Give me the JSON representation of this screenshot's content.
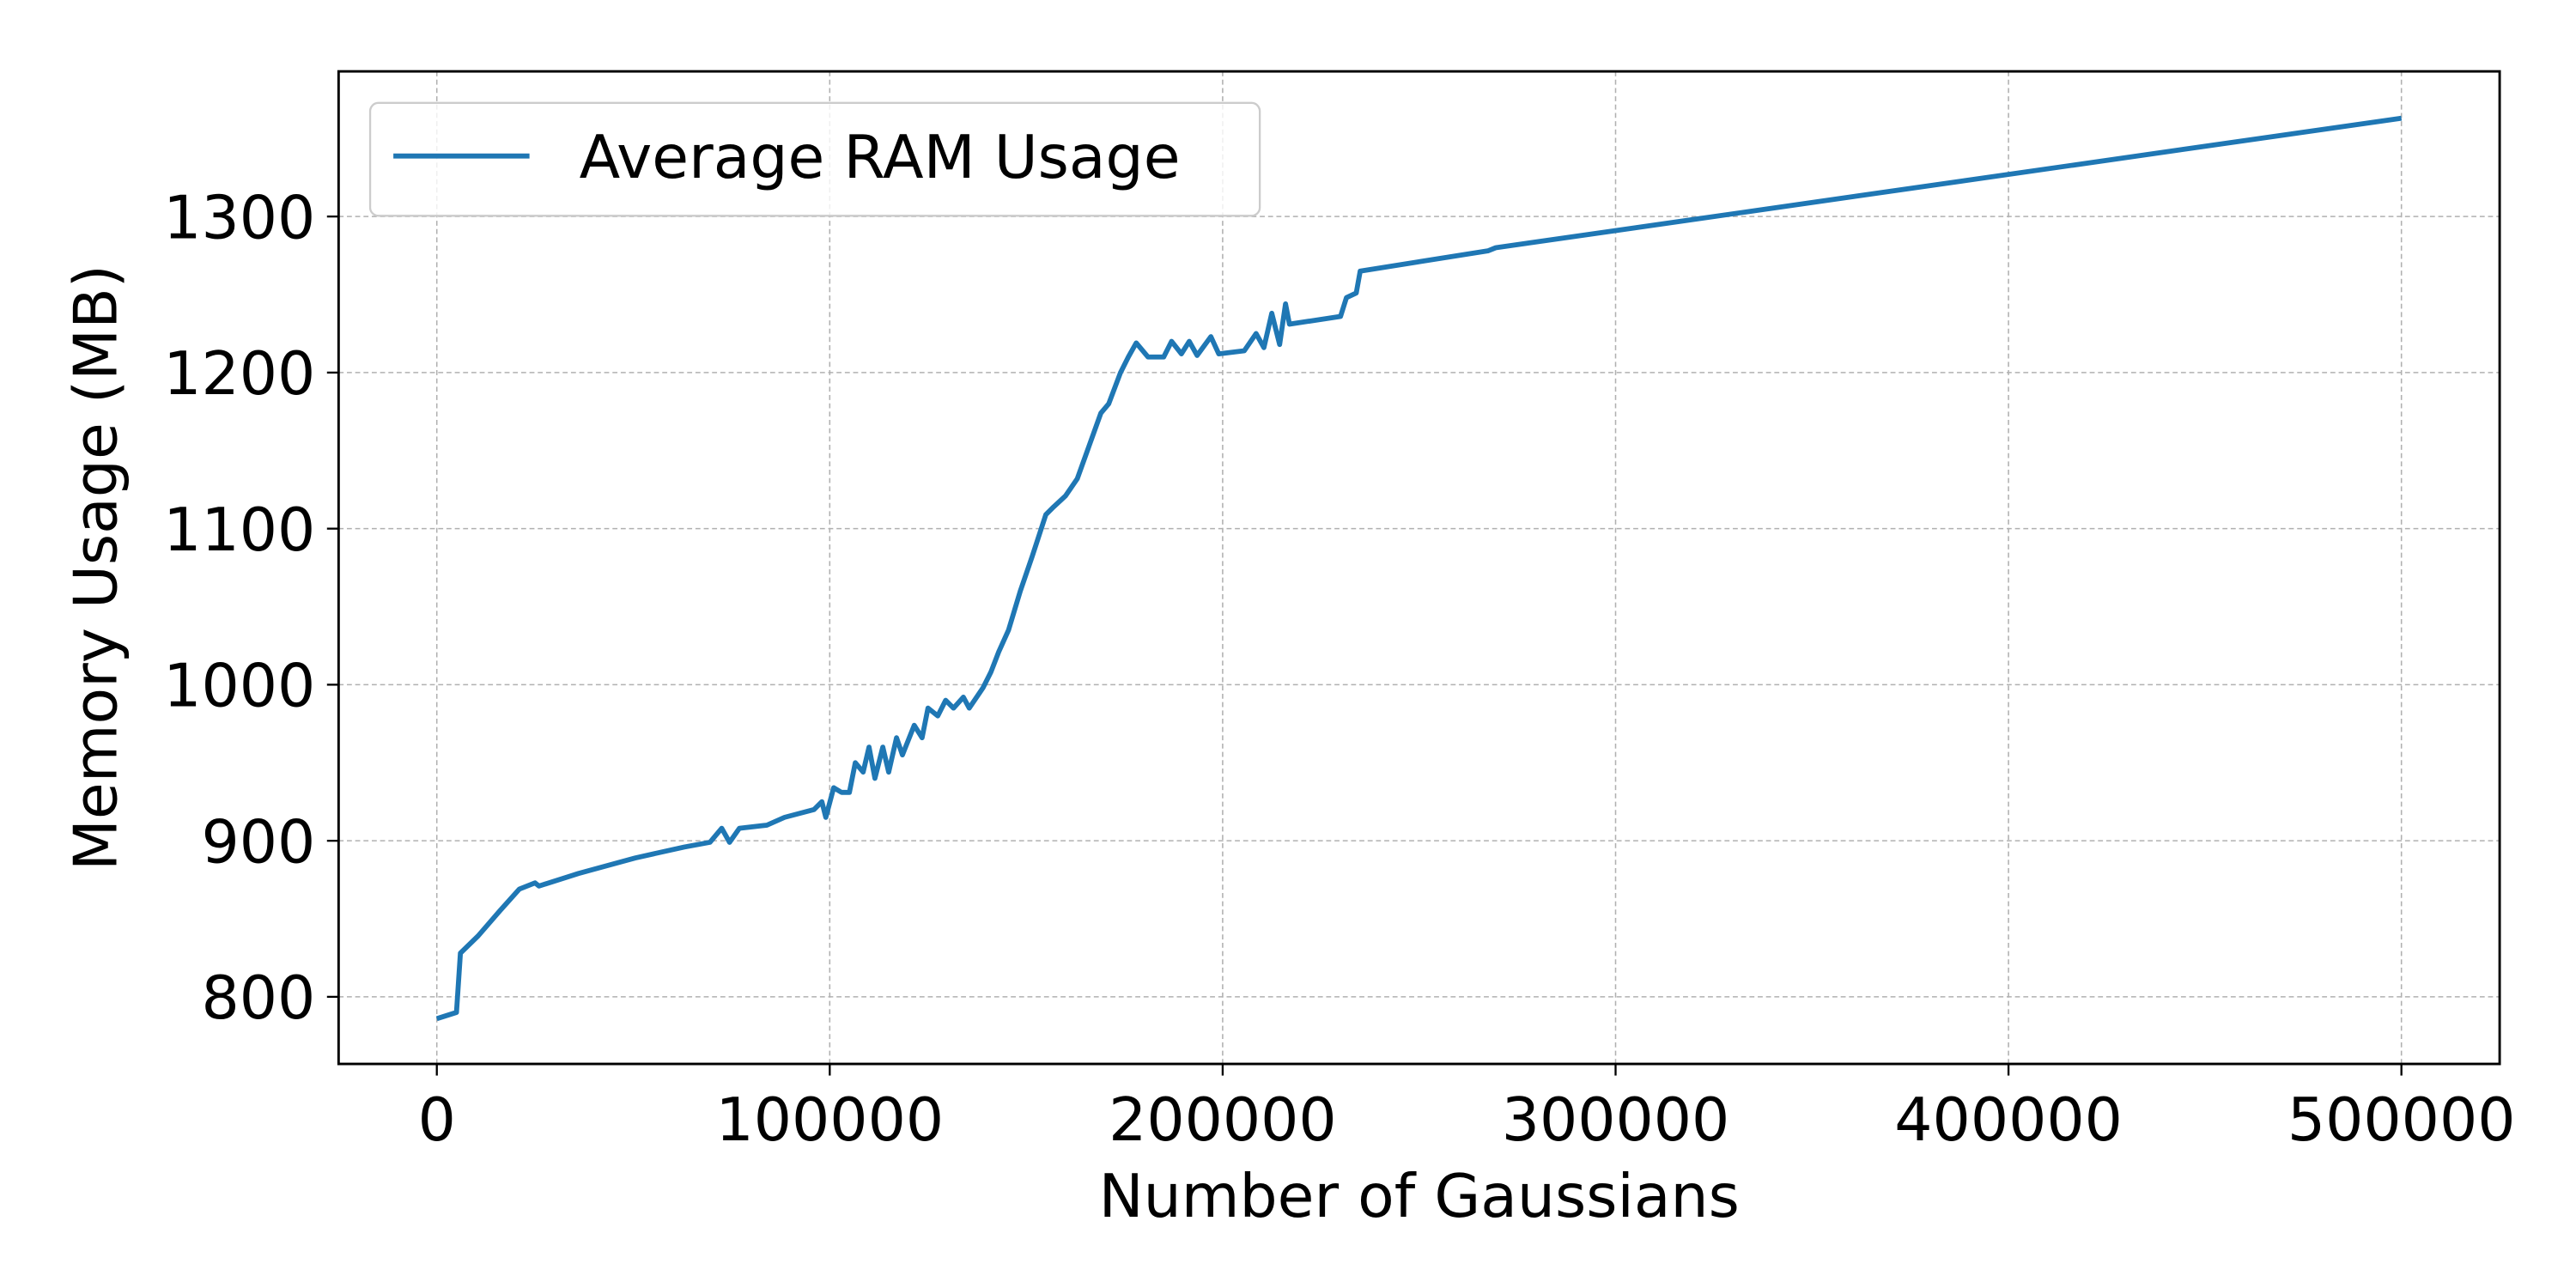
{
  "chart_data": {
    "type": "line",
    "x_label": "Number of Gaussians",
    "y_label": "Memory Usage (MB)",
    "x": [
      0,
      2500,
      5000,
      6000,
      10500,
      16000,
      21000,
      25000,
      26000,
      36000,
      50500,
      63000,
      69500,
      72500,
      74500,
      77000,
      84000,
      88500,
      96000,
      98000,
      99000,
      101000,
      103000,
      105000,
      106500,
      108500,
      110000,
      111500,
      113500,
      115000,
      117000,
      118500,
      121500,
      123500,
      125000,
      127500,
      129500,
      131500,
      134000,
      135500,
      139000,
      141000,
      143000,
      145500,
      148500,
      151500,
      155000,
      157000,
      160000,
      163000,
      166000,
      169000,
      171000,
      174000,
      176000,
      178000,
      181000,
      185000,
      187000,
      189500,
      191500,
      193500,
      197000,
      199000,
      205500,
      208500,
      210500,
      212500,
      214500,
      216000,
      217000,
      230000,
      231500,
      234000,
      235000,
      267500,
      269500,
      500000
    ],
    "series": [
      {
        "name": "Average RAM Usage",
        "color": "#1f77b4",
        "values": [
          786,
          788,
          790,
          828,
          839,
          855,
          869,
          873,
          871,
          879,
          889,
          896,
          899,
          908,
          899,
          908,
          910,
          915,
          920,
          925,
          915,
          934,
          931,
          931,
          950,
          944,
          960,
          940,
          960,
          944,
          966,
          955,
          974,
          966,
          985,
          980,
          990,
          985,
          992,
          985,
          998,
          1008,
          1021,
          1035,
          1060,
          1082,
          1109,
          1114,
          1121,
          1132,
          1153,
          1174,
          1180,
          1200,
          1210,
          1219,
          1210,
          1210,
          1220,
          1212,
          1220,
          1211,
          1223,
          1212,
          1214,
          1225,
          1216,
          1238,
          1218,
          1244,
          1231,
          1236,
          1248,
          1251,
          1265,
          1278,
          1280,
          1363
        ]
      }
    ],
    "xlim": [
      -25000,
      525000
    ],
    "xticks": [
      0,
      100000,
      200000,
      300000,
      400000,
      500000
    ],
    "ylim": [
      757,
      1393
    ],
    "yticks": [
      800,
      900,
      1000,
      1100,
      1200,
      1300
    ],
    "grid": true,
    "legend": "upper left"
  }
}
